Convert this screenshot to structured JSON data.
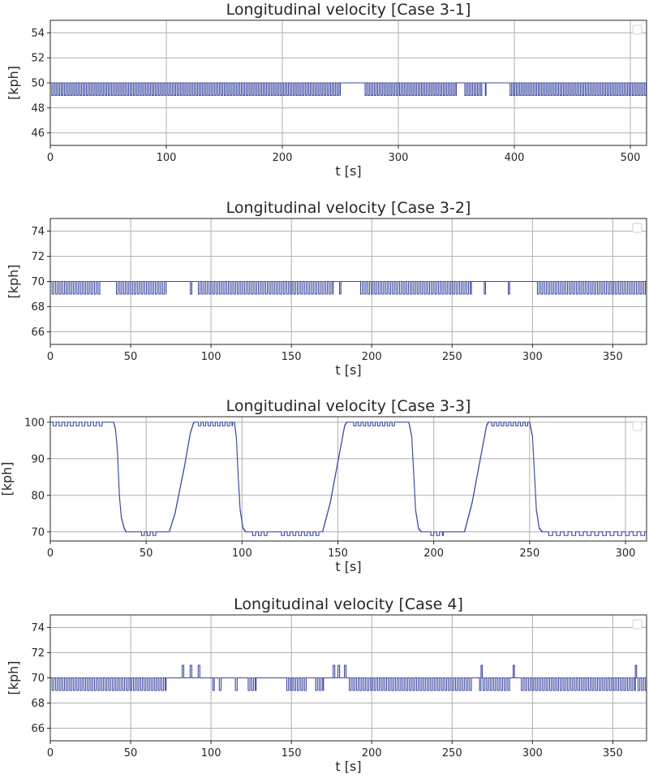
{
  "colors": {
    "line": "#3a48a0",
    "grid": "#b0b0b0",
    "axis": "#262626"
  },
  "chart_data": [
    {
      "type": "line",
      "title": "Longitudinal velocity [Case 3-1]",
      "xlabel": "t [s]",
      "ylabel": "[kph]",
      "xlim": [
        0,
        514
      ],
      "ylim": [
        45,
        55
      ],
      "xticks": [
        0,
        100,
        200,
        300,
        400,
        500
      ],
      "yticks": [
        46,
        48,
        50,
        52,
        54
      ],
      "grid": true,
      "legend": "top-right (empty)",
      "series": {
        "baseline_points": [
          [
            0,
            50
          ],
          [
            514,
            50
          ]
        ],
        "oscillations": [
          {
            "from": 0,
            "to": 250,
            "value": 49,
            "period": 2.7
          },
          {
            "from": 270,
            "to": 350,
            "value": 49,
            "period": 2.7
          },
          {
            "from": 356,
            "to": 372,
            "value": 49,
            "period": 2.7
          },
          {
            "from": 395,
            "to": 514,
            "value": 49,
            "period": 2.7
          }
        ],
        "spikes": [
          [
            375,
            49,
            0.6
          ]
        ]
      }
    },
    {
      "type": "line",
      "title": "Longitudinal velocity [Case 3-2]",
      "xlabel": "t [s]",
      "ylabel": "[kph]",
      "xlim": [
        0,
        371
      ],
      "ylim": [
        65,
        75
      ],
      "xticks": [
        0,
        50,
        100,
        150,
        200,
        250,
        300,
        350
      ],
      "yticks": [
        66,
        68,
        70,
        72,
        74
      ],
      "grid": true,
      "legend": "top-right (empty)",
      "series": {
        "baseline_points": [
          [
            0,
            70
          ],
          [
            371,
            70
          ]
        ],
        "oscillations": [
          {
            "from": 0,
            "to": 31,
            "value": 69,
            "period": 2.2
          },
          {
            "from": 40,
            "to": 72,
            "value": 69,
            "period": 2.2
          },
          {
            "from": 86,
            "to": 88,
            "value": 69,
            "period": 2.2
          },
          {
            "from": 91,
            "to": 176,
            "value": 69,
            "period": 2.2
          },
          {
            "from": 192,
            "to": 262,
            "value": 69,
            "period": 2.2
          },
          {
            "from": 302,
            "to": 371,
            "value": 69,
            "period": 2.2
          }
        ],
        "spikes": [
          [
            180,
            69,
            0.8
          ],
          [
            270,
            69,
            0.8
          ],
          [
            285,
            69,
            0.8
          ]
        ]
      }
    },
    {
      "type": "line",
      "title": "Longitudinal velocity [Case 3-3]",
      "xlabel": "t [s]",
      "ylabel": "[kph]",
      "xlim": [
        0,
        311
      ],
      "ylim": [
        67.5,
        101.5
      ],
      "xticks": [
        0,
        50,
        100,
        150,
        200,
        250,
        300
      ],
      "yticks": [
        70,
        80,
        90,
        100
      ],
      "grid": true,
      "legend": "top-right (empty)",
      "series": {
        "baseline_points": [
          [
            0,
            100
          ],
          [
            33,
            100
          ],
          [
            34,
            98
          ],
          [
            35,
            92
          ],
          [
            36,
            80
          ],
          [
            37,
            74
          ],
          [
            38.5,
            71
          ],
          [
            39.5,
            70
          ],
          [
            62,
            70
          ],
          [
            65,
            75
          ],
          [
            70,
            88
          ],
          [
            73,
            97
          ],
          [
            74.5,
            99.5
          ],
          [
            75,
            100
          ],
          [
            96,
            100
          ],
          [
            97,
            96
          ],
          [
            98,
            85
          ],
          [
            99,
            76
          ],
          [
            100.5,
            71
          ],
          [
            102,
            70
          ],
          [
            142,
            70
          ],
          [
            146,
            78
          ],
          [
            151,
            92
          ],
          [
            153.5,
            99
          ],
          [
            154.5,
            100
          ],
          [
            187,
            100
          ],
          [
            188.5,
            96
          ],
          [
            189.5,
            86
          ],
          [
            190.5,
            76
          ],
          [
            192,
            71
          ],
          [
            193.5,
            70
          ],
          [
            216,
            70
          ],
          [
            220,
            78
          ],
          [
            225,
            92
          ],
          [
            227.5,
            99
          ],
          [
            228.5,
            100
          ],
          [
            250,
            100
          ],
          [
            251.5,
            96
          ],
          [
            252.5,
            86
          ],
          [
            253.5,
            76
          ],
          [
            255,
            71
          ],
          [
            256.5,
            70
          ],
          [
            311,
            70
          ]
        ],
        "oscillations": [
          {
            "from": 0,
            "to": 28,
            "value": 99,
            "period": 3
          },
          {
            "from": 76,
            "to": 95,
            "value": 99,
            "period": 2.5
          },
          {
            "from": 157,
            "to": 180,
            "value": 99,
            "period": 2.5
          },
          {
            "from": 229,
            "to": 249,
            "value": 99,
            "period": 2.5
          },
          {
            "from": 46,
            "to": 56,
            "value": 69,
            "period": 3
          },
          {
            "from": 104,
            "to": 113,
            "value": 69,
            "period": 3
          },
          {
            "from": 119,
            "to": 140,
            "value": 69,
            "period": 3
          },
          {
            "from": 197,
            "to": 205,
            "value": 69,
            "period": 3
          },
          {
            "from": 258,
            "to": 311,
            "value": 69,
            "period": 4
          }
        ],
        "spikes": []
      }
    },
    {
      "type": "line",
      "title": "Longitudinal velocity [Case 4]",
      "xlabel": "t [s]",
      "ylabel": "[kph]",
      "xlim": [
        0,
        371
      ],
      "ylim": [
        65,
        75
      ],
      "xticks": [
        0,
        50,
        100,
        150,
        200,
        250,
        300,
        350
      ],
      "yticks": [
        66,
        68,
        70,
        72,
        74
      ],
      "grid": true,
      "legend": "top-right (empty)",
      "series": {
        "baseline_points": [
          [
            0,
            70
          ],
          [
            371,
            70
          ]
        ],
        "oscillations": [
          {
            "from": 0,
            "to": 72,
            "value": 69,
            "period": 2.2
          },
          {
            "from": 100,
            "to": 102,
            "value": 69,
            "period": 2.2
          },
          {
            "from": 104,
            "to": 107,
            "value": 69,
            "period": 2.2
          },
          {
            "from": 114,
            "to": 117,
            "value": 69,
            "period": 2.2
          },
          {
            "from": 122,
            "to": 128,
            "value": 69,
            "period": 2.2
          },
          {
            "from": 146,
            "to": 160,
            "value": 69,
            "period": 2.2
          },
          {
            "from": 164,
            "to": 170,
            "value": 69,
            "period": 2.2
          },
          {
            "from": 185,
            "to": 262,
            "value": 69,
            "period": 2.2
          },
          {
            "from": 266,
            "to": 286,
            "value": 69,
            "period": 2.2
          },
          {
            "from": 292,
            "to": 371,
            "value": 69,
            "period": 2.2
          }
        ],
        "spikes": [
          [
            82,
            71,
            1
          ],
          [
            87,
            71,
            1
          ],
          [
            92,
            71,
            1
          ],
          [
            176,
            71,
            1
          ],
          [
            179,
            71,
            1
          ],
          [
            183,
            71,
            1
          ],
          [
            268,
            71,
            0.8
          ],
          [
            288,
            71,
            0.8
          ],
          [
            364,
            71,
            0.8
          ]
        ]
      }
    }
  ]
}
